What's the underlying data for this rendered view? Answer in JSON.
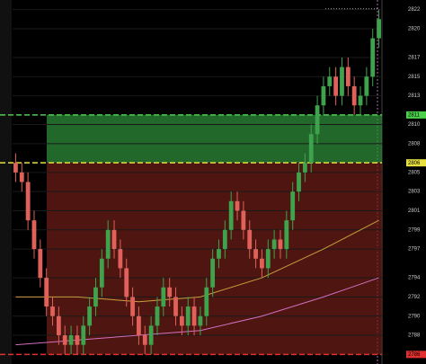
{
  "chart_data": {
    "type": "candlestick",
    "up_color": "#3fa34d",
    "down_color": "#e0605a",
    "open": [
      2806,
      2805,
      2804,
      2800,
      2797,
      2794,
      2791,
      2790,
      2788,
      2787,
      2788,
      2787,
      2789,
      2791,
      2793,
      2796,
      2799,
      2797,
      2795,
      2792,
      2790,
      2788,
      2787,
      2789,
      2791,
      2793,
      2792,
      2790,
      2789,
      2791,
      2789,
      2790,
      2793,
      2796,
      2797,
      2799,
      2802,
      2801,
      2799,
      2797,
      2796,
      2795,
      2797,
      2798,
      2797,
      2800,
      2803,
      2805,
      2806,
      2809,
      2812,
      2814,
      2815,
      2813,
      2816,
      2814,
      2812,
      2813,
      2815,
      2819
    ],
    "high": [
      2807,
      2806,
      2805,
      2801,
      2798,
      2795,
      2792,
      2791,
      2789,
      2789,
      2789,
      2790,
      2792,
      2794,
      2797,
      2800,
      2800,
      2798,
      2796,
      2793,
      2791,
      2789,
      2790,
      2792,
      2794,
      2794,
      2793,
      2791,
      2792,
      2792,
      2791,
      2794,
      2797,
      2798,
      2800,
      2803,
      2803,
      2802,
      2800,
      2798,
      2797,
      2798,
      2799,
      2799,
      2801,
      2804,
      2806,
      2807,
      2810,
      2813,
      2815,
      2816,
      2816,
      2817,
      2817,
      2815,
      2814,
      2816,
      2820,
      2822
    ],
    "low": [
      2804,
      2803,
      2799,
      2796,
      2793,
      2790,
      2789,
      2787,
      2786,
      2786,
      2786,
      2786,
      2788,
      2790,
      2792,
      2795,
      2796,
      2794,
      2791,
      2789,
      2787,
      2786,
      2786,
      2788,
      2790,
      2791,
      2789,
      2788,
      2788,
      2788,
      2788,
      2789,
      2792,
      2795,
      2796,
      2798,
      2800,
      2798,
      2796,
      2795,
      2794,
      2794,
      2796,
      2796,
      2796,
      2799,
      2802,
      2804,
      2805,
      2808,
      2811,
      2813,
      2812,
      2812,
      2813,
      2811,
      2811,
      2812,
      2814,
      2818
    ],
    "close": [
      2805,
      2804,
      2800,
      2797,
      2794,
      2791,
      2790,
      2788,
      2787,
      2788,
      2787,
      2789,
      2791,
      2793,
      2796,
      2799,
      2797,
      2795,
      2792,
      2790,
      2788,
      2787,
      2789,
      2791,
      2793,
      2792,
      2790,
      2789,
      2791,
      2789,
      2790,
      2793,
      2796,
      2797,
      2799,
      2802,
      2801,
      2799,
      2797,
      2796,
      2795,
      2797,
      2798,
      2797,
      2800,
      2803,
      2805,
      2806,
      2809,
      2812,
      2814,
      2815,
      2813,
      2816,
      2814,
      2812,
      2813,
      2815,
      2819,
      2821
    ],
    "lines": [
      {
        "color": "#c8a040",
        "x": [
          0,
          10,
          20,
          30,
          40,
          50,
          59
        ],
        "values": [
          2792,
          2792,
          2791.5,
          2792,
          2794,
          2797,
          2800
        ]
      },
      {
        "color": "#d070c0",
        "x": [
          0,
          10,
          20,
          30,
          40,
          50,
          59
        ],
        "values": [
          2787,
          2787.5,
          2788,
          2788.5,
          2790,
          2792,
          2794
        ]
      }
    ],
    "zones": [
      {
        "from": 2806,
        "to": 2811,
        "color": "#2e8b3a",
        "line_color": "#4cd04c"
      },
      {
        "from": 2786,
        "to": 2806,
        "color": "#6a1c16",
        "line_color": "#e8e040"
      }
    ],
    "levels": [
      {
        "value": 2811,
        "color": "#4cd04c"
      },
      {
        "value": 2806,
        "color": "#e8e040"
      },
      {
        "value": 2786,
        "color": "#e03030"
      }
    ],
    "ylim": [
      2785,
      2823
    ],
    "yticks": [
      2822,
      2820,
      2817,
      2815,
      2813,
      2810,
      2808,
      2805,
      2803,
      2801,
      2799,
      2797,
      2794,
      2792,
      2790,
      2788
    ]
  }
}
